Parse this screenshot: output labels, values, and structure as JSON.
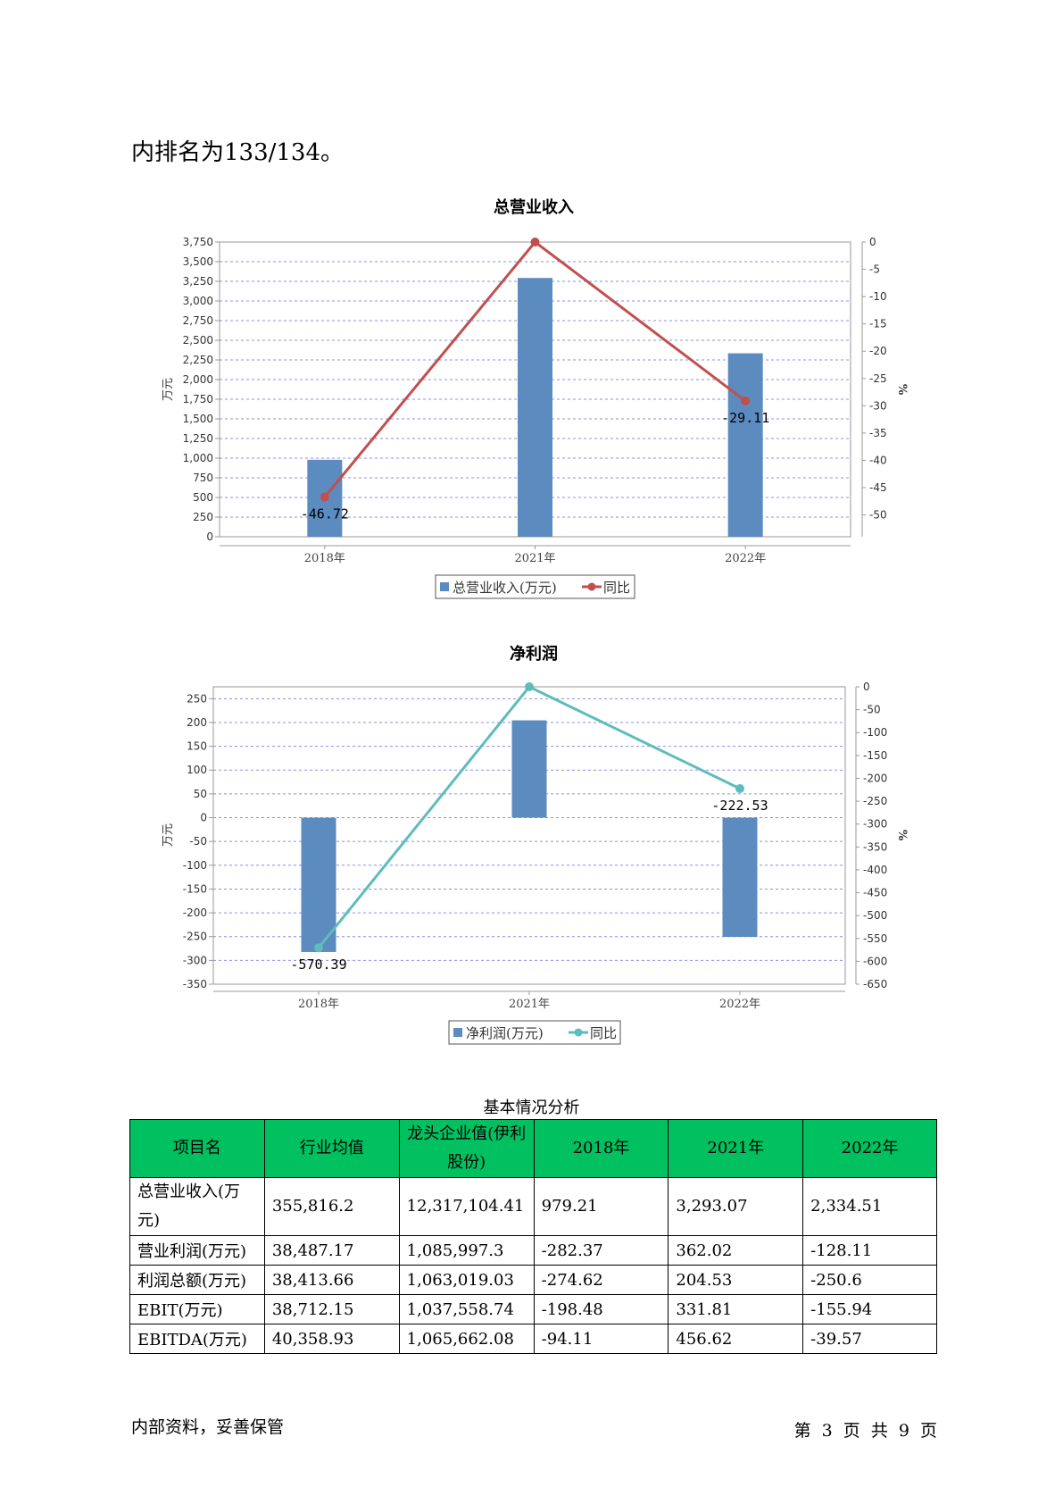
{
  "intro_text": "内排名为133/134。",
  "charts": {
    "revenue": {
      "title": "总营业收入",
      "ylabel_left": "万元",
      "ylabel_right": "%",
      "legend_bar": "总营业收入(万元)",
      "legend_line": "同比",
      "bar_color": "#5b8bbf",
      "line_color": "#c0504d"
    },
    "profit": {
      "title": "净利润",
      "ylabel_left": "万元",
      "ylabel_right": "%",
      "legend_bar": "净利润(万元)",
      "legend_line": "同比",
      "bar_color": "#5b8bbf",
      "line_color": "#5fbcbc"
    }
  },
  "chart_data": [
    {
      "type": "bar",
      "title": "总营业收入",
      "categories": [
        "2018年",
        "2021年",
        "2022年"
      ],
      "ylabel": "万元",
      "ylim": [
        0,
        3750
      ],
      "y_ticks": [
        0,
        250,
        500,
        750,
        1000,
        1250,
        1500,
        1750,
        2000,
        2250,
        2500,
        2750,
        3000,
        3250,
        3500,
        3750
      ],
      "y2label": "%",
      "y2lim": [
        -54,
        0
      ],
      "y2_ticks": [
        0,
        -5,
        -10,
        -15,
        -20,
        -25,
        -30,
        -35,
        -40,
        -45,
        -50
      ],
      "grid": true,
      "legend": "bottom-center",
      "series": [
        {
          "name": "总营业收入(万元)",
          "kind": "bar",
          "axis": "left",
          "values": [
            979.21,
            3293.07,
            2334.51
          ]
        },
        {
          "name": "同比",
          "kind": "line",
          "axis": "right",
          "values": [
            -46.72,
            0,
            -29.11
          ],
          "labels": [
            "-46.72",
            "",
            "-29.11"
          ]
        }
      ]
    },
    {
      "type": "bar",
      "title": "净利润",
      "categories": [
        "2018年",
        "2021年",
        "2022年"
      ],
      "ylabel": "万元",
      "ylim": [
        -350,
        275
      ],
      "y_ticks": [
        250,
        200,
        150,
        100,
        50,
        0,
        -50,
        -100,
        -150,
        -200,
        -250,
        -300,
        -350
      ],
      "y2label": "%",
      "y2lim": [
        -650,
        0
      ],
      "y2_ticks": [
        0,
        -50,
        -100,
        -150,
        -200,
        -250,
        -300,
        -350,
        -400,
        -450,
        -500,
        -550,
        -600,
        -650
      ],
      "grid": true,
      "legend": "bottom-center",
      "series": [
        {
          "name": "净利润(万元)",
          "kind": "bar",
          "axis": "left",
          "values": [
            -282.37,
            204.53,
            -250.6
          ]
        },
        {
          "name": "同比",
          "kind": "line",
          "axis": "right",
          "values": [
            -570.39,
            0,
            -222.53
          ],
          "labels": [
            "-570.39",
            "",
            "-222.53"
          ]
        }
      ]
    }
  ],
  "table": {
    "caption": "基本情况分析",
    "headers": [
      "项目名",
      "行业均值",
      "龙头企业值(伊利股份)",
      "2018年",
      "2021年",
      "2022年"
    ],
    "rows": [
      [
        "总营业收入(万元)",
        "355,816.2",
        "12,317,104.41",
        "979.21",
        "3,293.07",
        "2,334.51"
      ],
      [
        "营业利润(万元)",
        "38,487.17",
        "1,085,997.3",
        "-282.37",
        "362.02",
        "-128.11"
      ],
      [
        "利润总额(万元)",
        "38,413.66",
        "1,063,019.03",
        "-274.62",
        "204.53",
        "-250.6"
      ],
      [
        "EBIT(万元)",
        "38,712.15",
        "1,037,558.74",
        "-198.48",
        "331.81",
        "-155.94"
      ],
      [
        "EBITDA(万元)",
        "40,358.93",
        "1,065,662.08",
        "-94.11",
        "456.62",
        "-39.57"
      ]
    ]
  },
  "footer": {
    "left": "内部资料，妥善保管",
    "right": "第 3 页  共 9 页"
  }
}
